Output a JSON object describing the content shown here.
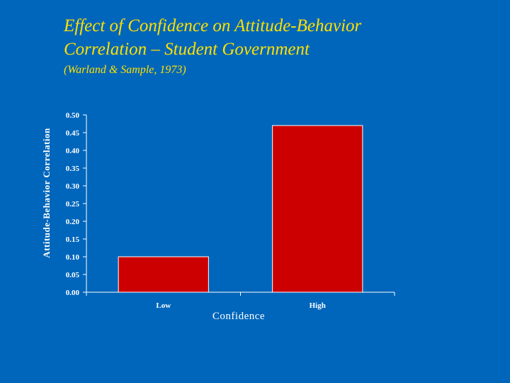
{
  "chart_data": {
    "type": "bar",
    "title_lines": [
      "Effect of Confidence on Attitude-Behavior",
      "Correlation – Student Government"
    ],
    "subtitle": "(Warland & Sample, 1973)",
    "categories": [
      "Low",
      "High"
    ],
    "values": [
      0.1,
      0.47
    ],
    "xlabel": "Confidence",
    "ylabel": "Attitude-Behavior Correlation",
    "ylim": [
      0,
      0.5
    ],
    "yticks": [
      "0.00",
      "0.05",
      "0.10",
      "0.15",
      "0.20",
      "0.25",
      "0.30",
      "0.35",
      "0.40",
      "0.45",
      "0.50"
    ],
    "grid": false,
    "bar_color": "#cc0000",
    "bar_edge_color": "#ffffff",
    "axis_color": "#ffffff",
    "title_color": "#ffe000",
    "background_color": "#0066bb"
  }
}
